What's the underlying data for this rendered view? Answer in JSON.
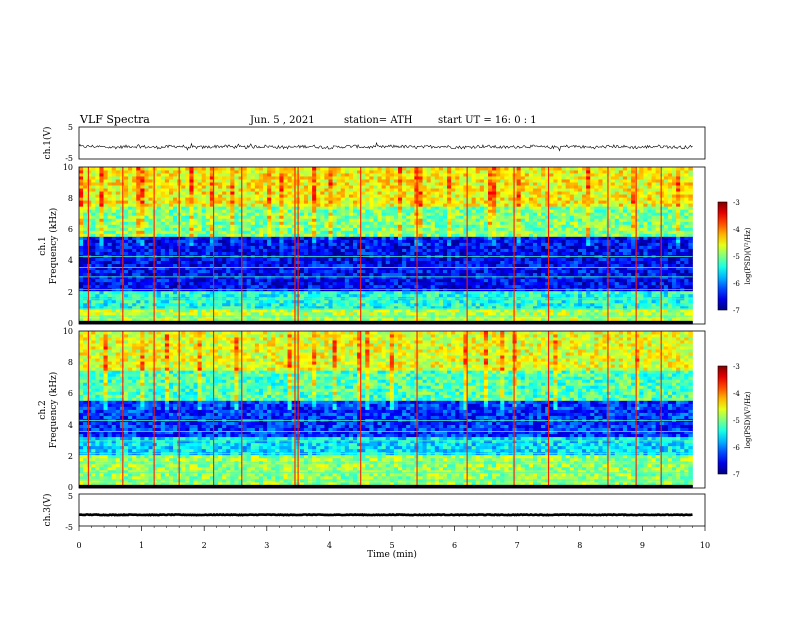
{
  "header": {
    "title": "VLF Spectra",
    "date": "Jun. 5 , 2021",
    "station": "station= ATH",
    "start_ut": "start UT =  16: 0  : 1"
  },
  "colorbar_label": "log(PSD)(V²/Hz)",
  "time_axis_label": "Time (min)",
  "chart_data": [
    {
      "type": "line",
      "name": "ch1-waveform",
      "ylabel": "ch.1(V)",
      "xlim": [
        0,
        10
      ],
      "ylim": [
        -5,
        5
      ],
      "yticks": [
        "5",
        "-5"
      ],
      "x_data_end": 9.8,
      "baseline": -1.2,
      "noise_amplitude": 0.5,
      "color": "#000000"
    },
    {
      "type": "heatmap",
      "name": "ch1-spectrogram",
      "ylabel": "ch.1",
      "ylabel2": "Frequency (kHz)",
      "xlim": [
        0,
        10
      ],
      "ylim": [
        0,
        10
      ],
      "yticks": [
        "0",
        "2",
        "4",
        "6",
        "8",
        "10"
      ],
      "x_data_end": 9.8,
      "colorbar": {
        "range": [
          -7,
          -3
        ],
        "ticks": [
          "-3",
          "-4",
          "-5",
          "-6",
          "-7"
        ]
      },
      "bands": [
        {
          "f0": 0.0,
          "f1": 0.2,
          "level": -7.0
        },
        {
          "f0": 0.2,
          "f1": 1.0,
          "level": -4.8
        },
        {
          "f0": 1.0,
          "f1": 2.2,
          "level": -5.4
        },
        {
          "f0": 2.2,
          "f1": 5.5,
          "level": -6.5
        },
        {
          "f0": 5.5,
          "f1": 7.5,
          "level": -5.0
        },
        {
          "f0": 7.5,
          "f1": 10.0,
          "level": -4.5
        }
      ],
      "sferic_times": [
        0.15,
        0.7,
        1.2,
        1.6,
        2.15,
        2.6,
        3.45,
        3.5,
        4.5,
        5.4,
        6.2,
        6.95,
        7.5,
        8.45,
        8.9,
        9.3
      ]
    },
    {
      "type": "heatmap",
      "name": "ch2-spectrogram",
      "ylabel": "ch.2",
      "ylabel2": "Frequency (kHz)",
      "xlim": [
        0,
        10
      ],
      "ylim": [
        0,
        10
      ],
      "yticks": [
        "0",
        "2",
        "4",
        "6",
        "8",
        "10"
      ],
      "x_data_end": 9.8,
      "colorbar": {
        "range": [
          -7,
          -3
        ],
        "ticks": [
          "-3",
          "-4",
          "-5",
          "-6",
          "-7"
        ]
      },
      "bands": [
        {
          "f0": 0.0,
          "f1": 0.2,
          "level": -7.0
        },
        {
          "f0": 0.2,
          "f1": 2.2,
          "level": -4.9
        },
        {
          "f0": 2.2,
          "f1": 3.2,
          "level": -5.6
        },
        {
          "f0": 3.2,
          "f1": 5.5,
          "level": -6.3
        },
        {
          "f0": 5.5,
          "f1": 7.5,
          "level": -5.2
        },
        {
          "f0": 7.5,
          "f1": 10.0,
          "level": -4.6
        }
      ],
      "sferic_times": [
        0.15,
        0.7,
        1.2,
        1.6,
        2.15,
        2.6,
        3.45,
        3.5,
        4.5,
        5.4,
        6.2,
        6.95,
        7.5,
        8.45,
        8.9,
        9.3
      ]
    },
    {
      "type": "line",
      "name": "ch3-waveform",
      "ylabel": "ch.3(V)",
      "xlim": [
        0,
        10
      ],
      "ylim": [
        -5,
        5
      ],
      "yticks": [
        "5",
        "-5"
      ],
      "x_data_end": 9.8,
      "baseline": -1.5,
      "noise_amplitude": 0.1,
      "color": "#000000"
    }
  ],
  "x_ticks": [
    "0",
    "1",
    "2",
    "3",
    "4",
    "5",
    "6",
    "7",
    "8",
    "9",
    "10"
  ]
}
